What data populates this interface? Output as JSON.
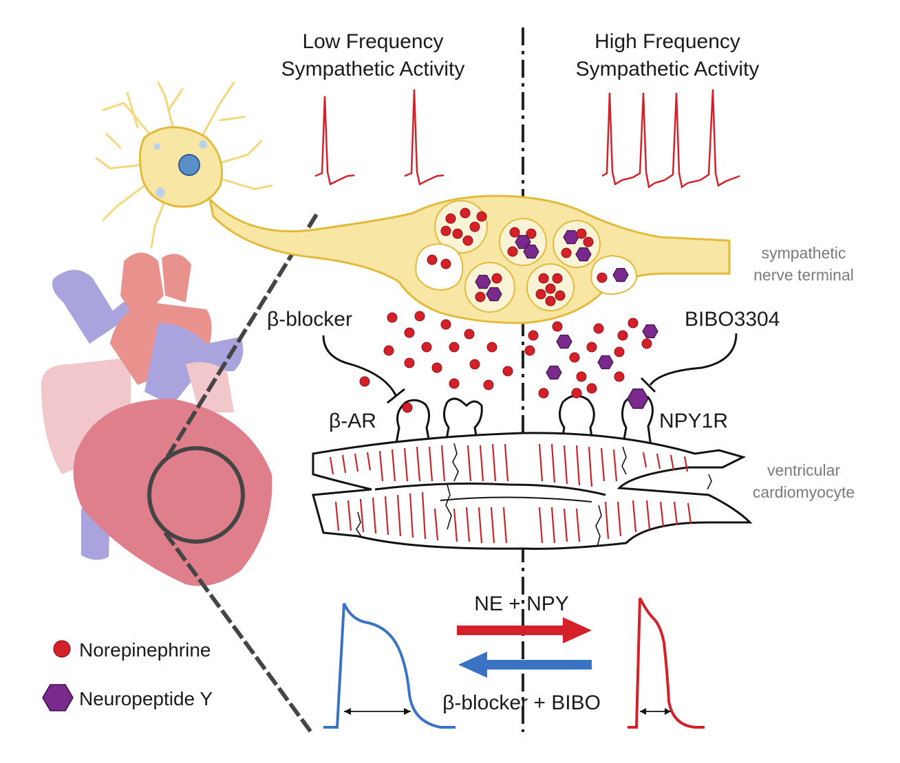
{
  "headers": {
    "low_line1": "Low Frequency",
    "low_line2": "Sympathetic Activity",
    "high_line1": "High Frequency",
    "high_line2": "Sympathetic Activity"
  },
  "side_labels": {
    "terminal_line1": "sympathetic",
    "terminal_line2": "nerve terminal",
    "myocyte_line1": "ventricular",
    "myocyte_line2": "cardiomyocyte"
  },
  "drugs": {
    "beta_blocker": "β-blocker",
    "bibo": "BIBO3304"
  },
  "receptors": {
    "beta_ar": "β-AR",
    "npy1r": "NPY1R"
  },
  "arrows": {
    "forward_label": "NE + NPY",
    "reverse_label": "β-blocker + BIBO"
  },
  "legend": {
    "norepinephrine": "Norepinephrine",
    "neuropeptide_y": "Neuropeptide Y"
  },
  "colors": {
    "norepinephrine": "#d42028",
    "neuropeptide_y": "#7a2a8c",
    "nerve": "#f7e6a4",
    "nerve_outline": "#e3b93a",
    "spike": "#d42028",
    "ap_long": "#3a73c4",
    "ap_short": "#d42028",
    "arrow_forward": "#d42028",
    "arrow_reverse": "#3a73c4"
  },
  "icons": {
    "neuron": "neuron-icon",
    "heart": "heart-icon"
  }
}
